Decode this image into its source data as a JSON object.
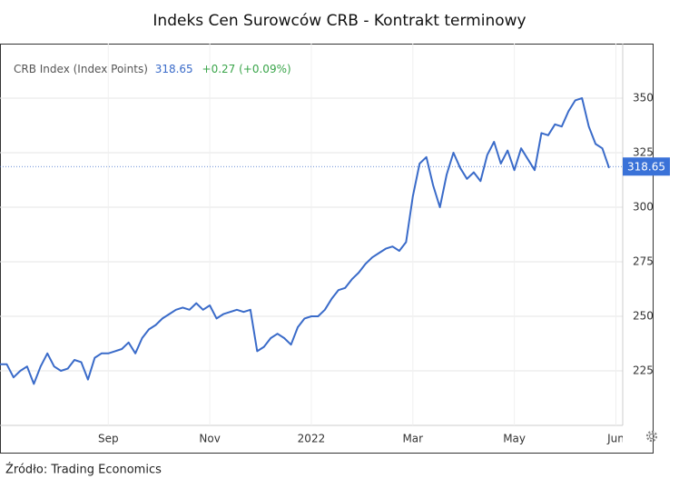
{
  "chart_data": {
    "type": "line",
    "title": "Indeks Cen Surowców CRB - Kontrakt terminowy",
    "source": "Źródło: Trading Economics",
    "categories": [
      null,
      null,
      null,
      null,
      null,
      null,
      null,
      null,
      null,
      null,
      null,
      null,
      null,
      null,
      null,
      null,
      "Sep",
      null,
      null,
      null,
      null,
      null,
      null,
      null,
      null,
      null,
      null,
      null,
      null,
      null,
      null,
      "Nov",
      null,
      null,
      null,
      null,
      null,
      null,
      null,
      null,
      null,
      null,
      null,
      null,
      null,
      null,
      "2022",
      null,
      null,
      null,
      null,
      null,
      null,
      null,
      null,
      null,
      null,
      null,
      null,
      null,
      null,
      "Mar",
      null,
      null,
      null,
      null,
      null,
      null,
      null,
      null,
      null,
      null,
      null,
      null,
      null,
      null,
      "May",
      null,
      null,
      null,
      null,
      null,
      null,
      null,
      null,
      null,
      null,
      null,
      null,
      null,
      null,
      "Jun"
    ],
    "series": [
      {
        "name": "CRB Index (Index Points)",
        "color": "#3a6bc9",
        "values": [
          228,
          228,
          222,
          225,
          227,
          219,
          227,
          233,
          227,
          225,
          226,
          230,
          229,
          221,
          231,
          233,
          233,
          234,
          235,
          238,
          233,
          240,
          244,
          246,
          249,
          251,
          253,
          254,
          253,
          256,
          253,
          255,
          249,
          251,
          252,
          253,
          252,
          253,
          234,
          236,
          240,
          242,
          240,
          237,
          245,
          249,
          250,
          250,
          253,
          258,
          262,
          263,
          267,
          270,
          274,
          277,
          279,
          281,
          282,
          280,
          284,
          305,
          320,
          323,
          310,
          300,
          315,
          325,
          318,
          313,
          316,
          312,
          324,
          330,
          320,
          326,
          317,
          327,
          322,
          317,
          334,
          333,
          338,
          337,
          344,
          349,
          350,
          337,
          329,
          327,
          318,
          null
        ]
      }
    ],
    "last_value": 318.65,
    "change_label": "+0.27 (+0.09%)",
    "ylim": [
      200,
      375
    ],
    "yticks": [
      225,
      250,
      275,
      300,
      325,
      350
    ],
    "grid": true
  }
}
